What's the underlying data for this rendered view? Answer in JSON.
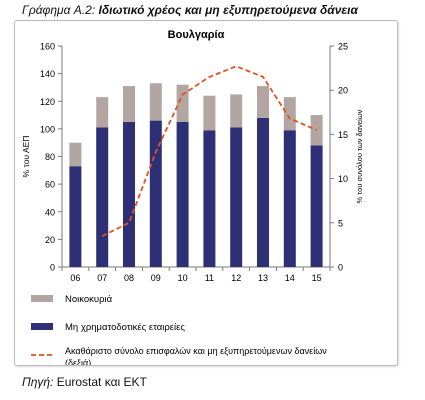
{
  "figure": {
    "label": "Γράφημα A.2:",
    "title": "Ιδιωτικό χρέος και μη εξυπηρετούμενα δάνεια"
  },
  "source": {
    "prefix": "Πηγή:",
    "orgs": "Eurostat και ΕΚΤ"
  },
  "chart_data": {
    "type": "bar",
    "title": "Βουλγαρία",
    "categories": [
      "06",
      "07",
      "08",
      "09",
      "10",
      "11",
      "12",
      "13",
      "14",
      "15"
    ],
    "ylabel_left": "% του ΑΕΠ",
    "ylabel_right": "% του συνόλου των δανείων",
    "ylim_left": [
      0,
      160
    ],
    "ylim_right": [
      0,
      25
    ],
    "yticks_left": [
      "0",
      "20",
      "40",
      "60",
      "80",
      "100",
      "120",
      "140",
      "160"
    ],
    "yticks_right": [
      "0",
      "5",
      "10",
      "15",
      "20",
      "25"
    ],
    "stacked": true,
    "grid": false,
    "legend_position": "bottom",
    "series": [
      {
        "name": "Μη χρηματοδοτικές εταιρείες",
        "kind": "bar",
        "axis": "left",
        "color": "#2e3076",
        "values": [
          73,
          101,
          105,
          106,
          105,
          99,
          101,
          108,
          99,
          88
        ]
      },
      {
        "name": "Νοικοκυριά",
        "kind": "bar",
        "axis": "left",
        "color": "#b3a6a2",
        "values": [
          17,
          22,
          26,
          27,
          27,
          25,
          24,
          23,
          24,
          22
        ]
      },
      {
        "name": "Ακαθάριστο σύνολο επισφαλών και μη εξυπηρετούμενων δανείων (δεξιά)",
        "kind": "line",
        "axis": "right",
        "color": "#e0521f",
        "dashed": true,
        "values": [
          null,
          3.5,
          5,
          13,
          19.5,
          21.5,
          22.7,
          21.5,
          16.8,
          15.5
        ]
      }
    ]
  }
}
